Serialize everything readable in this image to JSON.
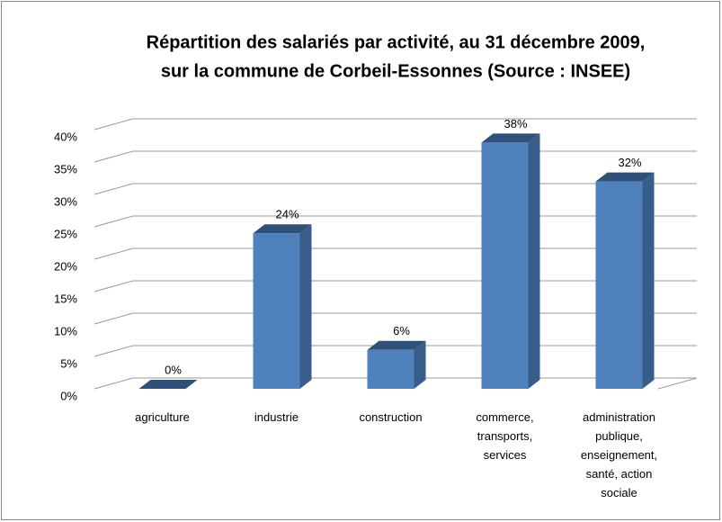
{
  "chart_data": {
    "type": "bar3d",
    "title": [
      "Répartition des salariés par activité, au 31 décembre 2009,",
      "sur la commune de Corbeil-Essonnes (Source : INSEE)"
    ],
    "categories": [
      "agriculture",
      "industrie",
      "construction",
      "commerce, transports, services",
      "administration publique, enseignement, santé, action sociale"
    ],
    "values": [
      0,
      24,
      6,
      38,
      32
    ],
    "value_labels": [
      "0%",
      "24%",
      "6%",
      "38%",
      "32%"
    ],
    "color": "#4f81bd",
    "ylim": [
      0,
      40
    ],
    "yticks": [
      {
        "value": 0,
        "label": "0%"
      },
      {
        "value": 5,
        "label": "5%"
      },
      {
        "value": 10,
        "label": "10%"
      },
      {
        "value": 15,
        "label": "15%"
      },
      {
        "value": 20,
        "label": "20%"
      },
      {
        "value": 25,
        "label": "25%"
      },
      {
        "value": 30,
        "label": "30%"
      },
      {
        "value": 35,
        "label": "35%"
      },
      {
        "value": 40,
        "label": "40%"
      }
    ],
    "grid": true
  }
}
